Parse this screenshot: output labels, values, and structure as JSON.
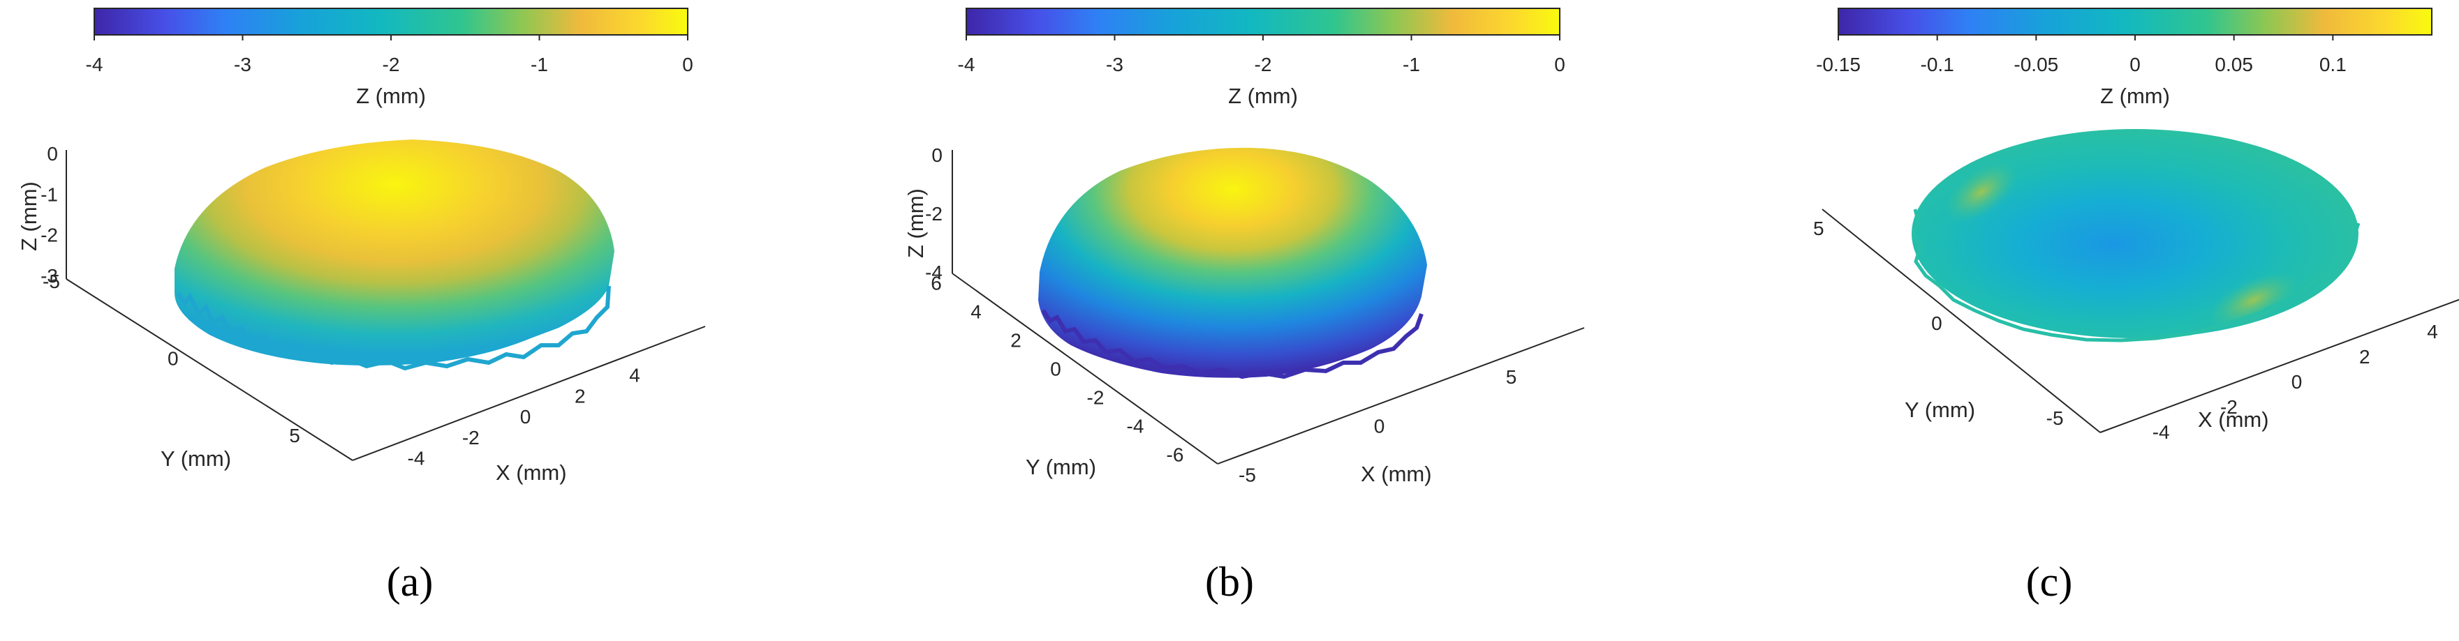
{
  "panels": [
    {
      "label": "(a)",
      "colorbar_label": "Z (mm)",
      "x_label": "X (mm)",
      "y_label": "Y (mm)",
      "z_label": "Z (mm)"
    },
    {
      "label": "(b)",
      "colorbar_label": "Z (mm)",
      "x_label": "X (mm)",
      "y_label": "Y (mm)",
      "z_label": "Z (mm)"
    },
    {
      "label": "(c)",
      "colorbar_label": "Z (mm)",
      "x_label": "X (mm)",
      "y_label": "Y (mm)",
      "z_label": ""
    }
  ],
  "chart_data": [
    {
      "type": "surface",
      "colormap": "parula",
      "colorbar": {
        "range": [
          -4,
          0
        ],
        "ticks": [
          "-4",
          "-3",
          "-2",
          "-1",
          "0"
        ],
        "label": "Z (mm)"
      },
      "x_ticks": [
        "-4",
        "-2",
        "0",
        "2",
        "4"
      ],
      "y_ticks": [
        "-5",
        "0",
        "5"
      ],
      "z_ticks": [
        "-3",
        "-2",
        "-1",
        "0"
      ],
      "xlabel": "X (mm)",
      "ylabel": "Y (mm)",
      "zlabel": "Z (mm)",
      "z_range": [
        -3.5,
        0
      ],
      "surface_colors": [
        "#1fb6c2",
        "#4dc88e",
        "#c2c440",
        "#f6cf2f",
        "#f9f510"
      ]
    },
    {
      "type": "surface",
      "colormap": "parula",
      "colorbar": {
        "range": [
          -4,
          0
        ],
        "ticks": [
          "-4",
          "-3",
          "-2",
          "-1",
          "0"
        ],
        "label": "Z (mm)"
      },
      "x_ticks": [
        "-5",
        "0",
        "5"
      ],
      "y_ticks": [
        "-6",
        "-4",
        "-2",
        "0",
        "2",
        "4",
        "6"
      ],
      "z_ticks": [
        "-4",
        "-2",
        "0"
      ],
      "xlabel": "X (mm)",
      "ylabel": "Y (mm)",
      "zlabel": "Z (mm)",
      "z_range": [
        -4.8,
        0
      ],
      "surface_colors": [
        "#3d2fb0",
        "#1c7fe0",
        "#17b3c4",
        "#55c884",
        "#d8c43a",
        "#f9f510"
      ]
    },
    {
      "type": "surface",
      "colormap": "parula",
      "colorbar": {
        "range": [
          -0.15,
          0.15
        ],
        "ticks": [
          "-0.15",
          "-0.1",
          "-0.05",
          "0",
          "0.05",
          "0.1"
        ],
        "label": "Z (mm)"
      },
      "x_ticks": [
        "-4",
        "-2",
        "0",
        "2",
        "4"
      ],
      "y_ticks": [
        "-5",
        "0",
        "5"
      ],
      "z_ticks": [],
      "xlabel": "X (mm)",
      "ylabel": "Y (mm)",
      "zlabel": "",
      "surface_colors": [
        "#1aa5d8",
        "#14b8c8",
        "#30c09a",
        "#8cc45a"
      ]
    }
  ]
}
